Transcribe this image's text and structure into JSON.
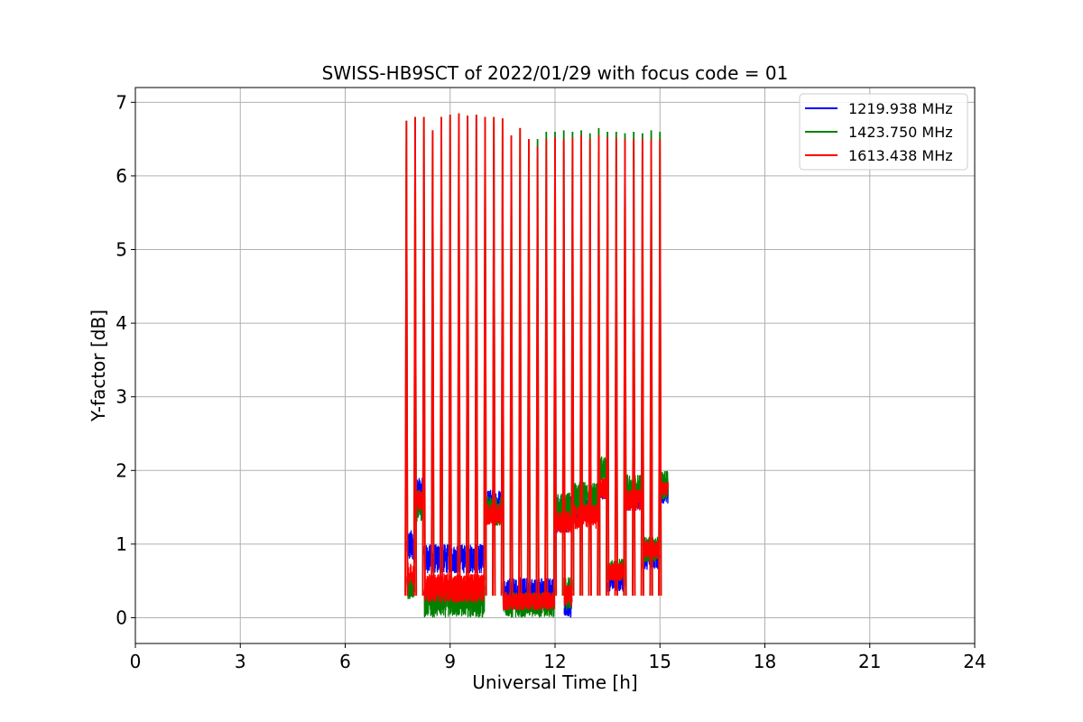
{
  "chart_data": {
    "type": "line",
    "title": "SWISS-HB9SCT of 2022/01/29 with focus code = 01",
    "xlabel": "Universal Time [h]",
    "ylabel": "Y-factor [dB]",
    "xlim": [
      0,
      24
    ],
    "ylim": [
      -0.35,
      7.2
    ],
    "xticks": [
      0,
      3,
      6,
      9,
      12,
      15,
      18,
      21,
      24
    ],
    "yticks": [
      0,
      1,
      2,
      3,
      4,
      5,
      6,
      7
    ],
    "grid": true,
    "legend_position": "top-right",
    "data_range_h": [
      7.75,
      15.25
    ],
    "peaks": {
      "times": [
        7.75,
        8.0,
        8.25,
        8.5,
        8.75,
        9.0,
        9.25,
        9.5,
        9.75,
        10.0,
        10.25,
        10.5,
        10.75,
        11.0,
        11.25,
        11.5,
        11.75,
        12.0,
        12.25,
        12.5,
        12.75,
        13.0,
        13.25,
        13.5,
        13.75,
        14.0,
        14.25,
        14.5,
        14.75,
        15.0
      ],
      "red": [
        6.75,
        6.8,
        6.8,
        6.62,
        6.8,
        6.83,
        6.85,
        6.82,
        6.83,
        6.8,
        6.8,
        6.78,
        6.55,
        6.65,
        6.5,
        6.4,
        6.5,
        6.52,
        6.5,
        6.52,
        6.55,
        6.5,
        6.55,
        6.52,
        6.52,
        6.5,
        6.5,
        6.5,
        6.5,
        6.5
      ],
      "green": [
        6.75,
        6.8,
        6.8,
        6.62,
        6.8,
        6.83,
        6.85,
        6.82,
        6.83,
        6.8,
        6.8,
        6.78,
        6.55,
        6.65,
        6.5,
        6.5,
        6.6,
        6.6,
        6.62,
        6.6,
        6.62,
        6.58,
        6.65,
        6.6,
        6.6,
        6.58,
        6.6,
        6.58,
        6.62,
        6.6
      ]
    },
    "series": [
      {
        "name": "1219.938 MHz",
        "color": "#0000ff",
        "segments": [
          {
            "t": [
              7.75,
              8.0
            ],
            "lo": 0.75,
            "hi": 1.2
          },
          {
            "t": [
              8.0,
              8.25
            ],
            "lo": 1.35,
            "hi": 1.9
          },
          {
            "t": [
              8.25,
              10.0
            ],
            "lo": 0.6,
            "hi": 1.0
          },
          {
            "t": [
              10.0,
              10.5
            ],
            "lo": 1.35,
            "hi": 1.75
          },
          {
            "t": [
              10.5,
              12.0
            ],
            "lo": 0.1,
            "hi": 0.55
          },
          {
            "t": [
              12.0,
              12.5
            ],
            "lo": 1.15,
            "hi": 1.65
          },
          {
            "t": [
              12.25,
              12.5
            ],
            "lo": 0.0,
            "hi": 0.3
          },
          {
            "t": [
              12.5,
              13.25
            ],
            "lo": 1.3,
            "hi": 1.7
          },
          {
            "t": [
              13.25,
              13.5
            ],
            "lo": 1.6,
            "hi": 1.85
          },
          {
            "t": [
              13.5,
              14.0
            ],
            "lo": 0.35,
            "hi": 0.75
          },
          {
            "t": [
              14.0,
              14.5
            ],
            "lo": 1.45,
            "hi": 1.85
          },
          {
            "t": [
              14.5,
              15.0
            ],
            "lo": 0.65,
            "hi": 1.0
          },
          {
            "t": [
              15.0,
              15.25
            ],
            "lo": 1.55,
            "hi": 1.9
          }
        ]
      },
      {
        "name": "1423.750 MHz",
        "color": "#008000",
        "segments": [
          {
            "t": [
              7.75,
              8.0
            ],
            "lo": 0.25,
            "hi": 0.55
          },
          {
            "t": [
              8.0,
              8.25
            ],
            "lo": 1.3,
            "hi": 1.75
          },
          {
            "t": [
              8.25,
              10.0
            ],
            "lo": 0.0,
            "hi": 0.45
          },
          {
            "t": [
              10.0,
              10.5
            ],
            "lo": 1.25,
            "hi": 1.65
          },
          {
            "t": [
              10.5,
              12.0
            ],
            "lo": 0.0,
            "hi": 0.35
          },
          {
            "t": [
              12.0,
              12.5
            ],
            "lo": 1.2,
            "hi": 1.7
          },
          {
            "t": [
              12.25,
              12.5
            ],
            "lo": 0.1,
            "hi": 0.55
          },
          {
            "t": [
              12.5,
              13.25
            ],
            "lo": 1.4,
            "hi": 1.85
          },
          {
            "t": [
              13.25,
              13.5
            ],
            "lo": 1.8,
            "hi": 2.2
          },
          {
            "t": [
              13.5,
              14.0
            ],
            "lo": 0.5,
            "hi": 0.8
          },
          {
            "t": [
              14.0,
              14.5
            ],
            "lo": 1.55,
            "hi": 1.95
          },
          {
            "t": [
              14.5,
              15.0
            ],
            "lo": 0.75,
            "hi": 1.1
          },
          {
            "t": [
              15.0,
              15.25
            ],
            "lo": 1.6,
            "hi": 2.0
          }
        ]
      },
      {
        "name": "1613.438 MHz",
        "color": "#ff0000",
        "segments": [
          {
            "t": [
              7.75,
              8.0
            ],
            "lo": 0.45,
            "hi": 0.75
          },
          {
            "t": [
              8.0,
              8.25
            ],
            "lo": 1.45,
            "hi": 1.75
          },
          {
            "t": [
              8.25,
              10.0
            ],
            "lo": 0.2,
            "hi": 0.6
          },
          {
            "t": [
              10.0,
              10.5
            ],
            "lo": 1.25,
            "hi": 1.55
          },
          {
            "t": [
              10.5,
              12.0
            ],
            "lo": 0.1,
            "hi": 0.35
          },
          {
            "t": [
              12.0,
              12.5
            ],
            "lo": 1.15,
            "hi": 1.45
          },
          {
            "t": [
              12.25,
              12.5
            ],
            "lo": 0.15,
            "hi": 0.45
          },
          {
            "t": [
              12.5,
              13.25
            ],
            "lo": 1.2,
            "hi": 1.55
          },
          {
            "t": [
              13.25,
              13.5
            ],
            "lo": 1.6,
            "hi": 1.9
          },
          {
            "t": [
              13.5,
              14.0
            ],
            "lo": 0.5,
            "hi": 0.75
          },
          {
            "t": [
              14.0,
              14.5
            ],
            "lo": 1.45,
            "hi": 1.75
          },
          {
            "t": [
              14.5,
              15.0
            ],
            "lo": 0.8,
            "hi": 1.05
          },
          {
            "t": [
              15.0,
              15.25
            ],
            "lo": 1.65,
            "hi": 1.85
          }
        ]
      }
    ]
  }
}
